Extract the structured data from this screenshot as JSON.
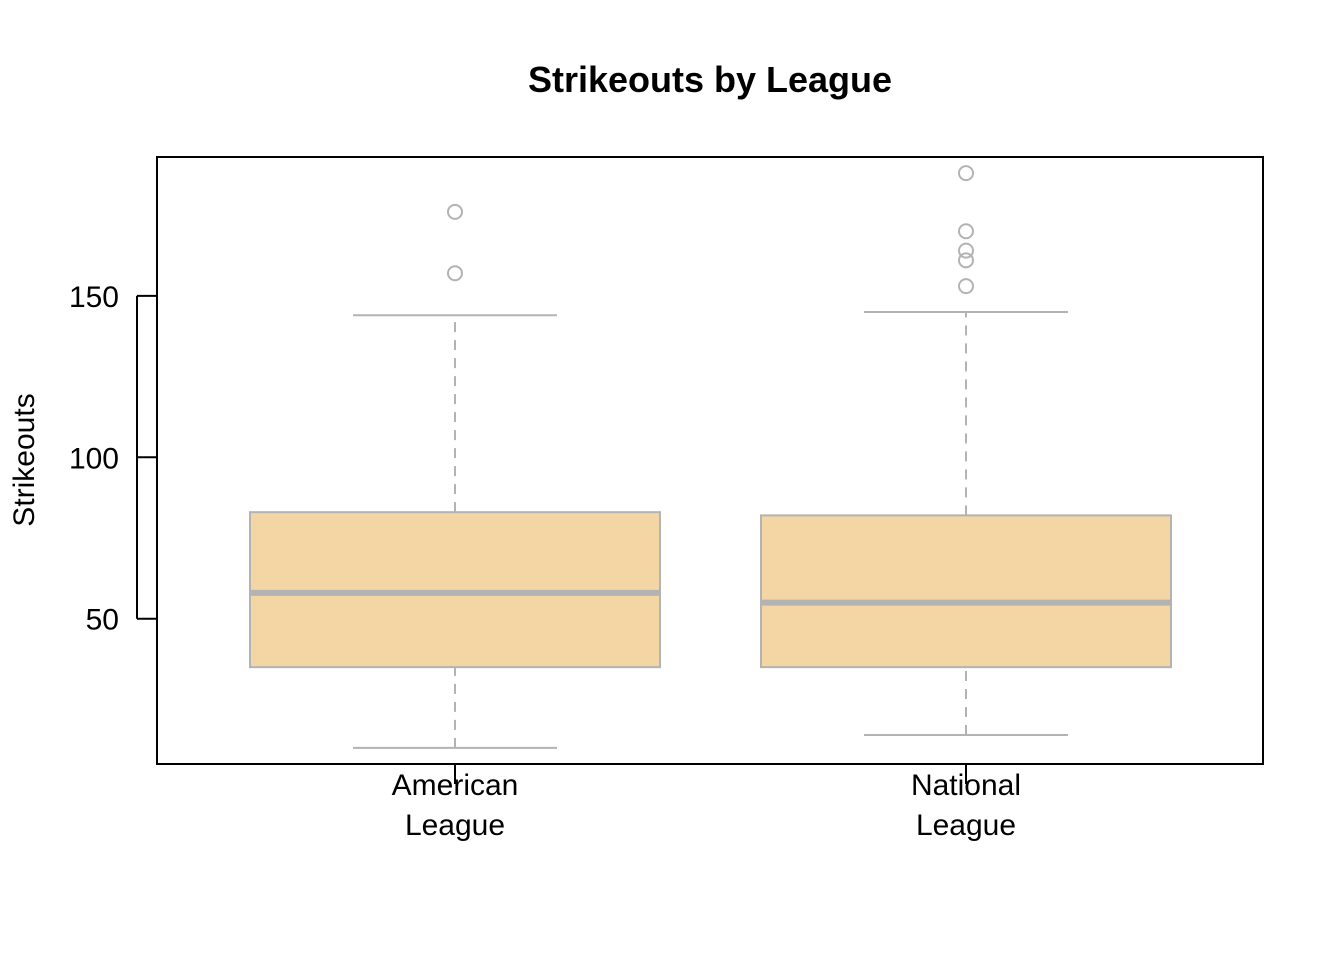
{
  "chart_data": {
    "type": "boxplot",
    "title": "Strikeouts by League",
    "ylabel": "Strikeouts",
    "xlabel": "",
    "ylim": [
      5,
      193
    ],
    "yticks": [
      50,
      100,
      150
    ],
    "grid": false,
    "legend": "none",
    "colors": {
      "box_fill": "#f3d6a4",
      "box_border": "#b3b3b3",
      "median": "#b3b3b3",
      "whisker": "#b3b3b3",
      "outlier": "#b3b3b3",
      "frame": "#000000"
    },
    "categories": [
      {
        "label_lines": [
          "American",
          "League"
        ],
        "whisker_low": 10,
        "q1": 35,
        "median": 58,
        "q3": 83,
        "whisker_high": 144,
        "outliers": [
          157,
          176
        ]
      },
      {
        "label_lines": [
          "National",
          "League"
        ],
        "whisker_low": 14,
        "q1": 35,
        "median": 55,
        "q3": 82,
        "whisker_high": 145,
        "outliers": [
          153,
          161,
          164,
          170,
          188
        ]
      }
    ]
  }
}
